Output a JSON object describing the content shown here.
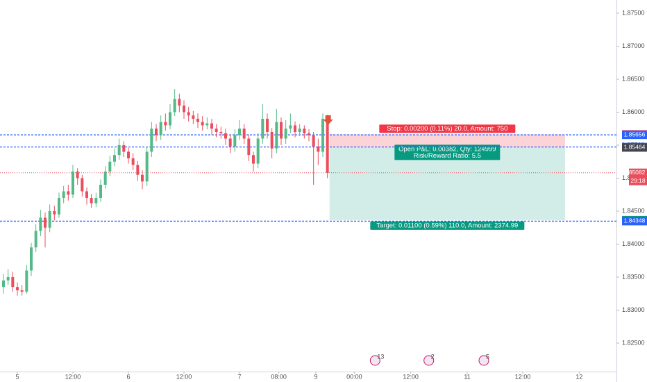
{
  "chart_data": {
    "type": "candlestick",
    "up_color": "#53b987",
    "down_color": "#eb4d5c",
    "x": [
      -3,
      -2,
      -1,
      0,
      1,
      2,
      3,
      4,
      5,
      6,
      7,
      8,
      9,
      10,
      11,
      12,
      13,
      14,
      15,
      16,
      17,
      18,
      19,
      20,
      21,
      22,
      23,
      24,
      25,
      26,
      27,
      28,
      29,
      30,
      31,
      32,
      33,
      34,
      35,
      36,
      37,
      38,
      39,
      40,
      41,
      42,
      43,
      44,
      45,
      46,
      47,
      48,
      49,
      50,
      51,
      52,
      53,
      54,
      55,
      56,
      57,
      58,
      59,
      60,
      61,
      62,
      63,
      64,
      65,
      66,
      67
    ],
    "open": [
      1.8335,
      1.8345,
      1.835,
      1.8335,
      1.833,
      1.8328,
      1.836,
      1.8395,
      1.842,
      1.844,
      1.8425,
      1.845,
      1.8445,
      1.847,
      1.848,
      1.8475,
      1.851,
      1.85,
      1.848,
      1.847,
      1.8462,
      1.847,
      1.849,
      1.851,
      1.8525,
      1.8535,
      1.855,
      1.854,
      1.853,
      1.852,
      1.8505,
      1.8495,
      1.854,
      1.8575,
      1.8565,
      1.8585,
      1.858,
      1.86,
      1.862,
      1.861,
      1.86,
      1.8595,
      1.859,
      1.8585,
      1.858,
      1.8583,
      1.8575,
      1.857,
      1.8568,
      1.856,
      1.8548,
      1.8565,
      1.8575,
      1.856,
      1.8535,
      1.8522,
      1.856,
      1.859,
      1.857,
      1.8545,
      1.8585,
      1.856,
      1.8575,
      1.858,
      1.857,
      1.8575,
      1.8568,
      1.8565,
      1.8548,
      1.854,
      1.859
    ],
    "high": [
      1.8355,
      1.8362,
      1.8358,
      1.8342,
      1.8338,
      1.8368,
      1.8402,
      1.843,
      1.8452,
      1.8448,
      1.846,
      1.8458,
      1.8478,
      1.8488,
      1.849,
      1.852,
      1.8515,
      1.8505,
      1.8486,
      1.8476,
      1.8478,
      1.8498,
      1.8518,
      1.8534,
      1.8545,
      1.856,
      1.8556,
      1.8546,
      1.8538,
      1.8526,
      1.8512,
      1.8548,
      1.8585,
      1.8582,
      1.8595,
      1.8598,
      1.8612,
      1.8635,
      1.8628,
      1.8618,
      1.8608,
      1.8602,
      1.8598,
      1.8594,
      1.8592,
      1.859,
      1.8582,
      1.8578,
      1.8575,
      1.8566,
      1.8574,
      1.8588,
      1.8582,
      1.8566,
      1.854,
      1.8568,
      1.8612,
      1.8598,
      1.8576,
      1.8605,
      1.8592,
      1.8588,
      1.8598,
      1.8586,
      1.8582,
      1.858,
      1.8574,
      1.857,
      1.856,
      1.8598,
      1.8596
    ],
    "low": [
      1.8325,
      1.8338,
      1.8328,
      1.8322,
      1.8322,
      1.8325,
      1.8352,
      1.8388,
      1.8412,
      1.8395,
      1.8418,
      1.8436,
      1.844,
      1.8462,
      1.8466,
      1.847,
      1.849,
      1.8472,
      1.846,
      1.8455,
      1.8456,
      1.8464,
      1.8484,
      1.8503,
      1.8518,
      1.8528,
      1.8532,
      1.8522,
      1.8512,
      1.8496,
      1.8483,
      1.8488,
      1.8532,
      1.8556,
      1.8558,
      1.8572,
      1.8574,
      1.8594,
      1.86,
      1.859,
      1.8586,
      1.8582,
      1.8576,
      1.8572,
      1.8574,
      1.8566,
      1.8562,
      1.856,
      1.855,
      1.8538,
      1.854,
      1.8558,
      1.8552,
      1.8526,
      1.851,
      1.8515,
      1.8552,
      1.856,
      1.853,
      1.8538,
      1.855,
      1.8552,
      1.8568,
      1.8562,
      1.8564,
      1.856,
      1.8556,
      1.849,
      1.852,
      1.8532,
      1.85
    ],
    "close": [
      1.8345,
      1.835,
      1.8335,
      1.833,
      1.8328,
      1.836,
      1.8395,
      1.842,
      1.844,
      1.8425,
      1.845,
      1.8445,
      1.847,
      1.848,
      1.8475,
      1.851,
      1.85,
      1.848,
      1.847,
      1.8462,
      1.847,
      1.849,
      1.851,
      1.8525,
      1.8535,
      1.855,
      1.854,
      1.853,
      1.852,
      1.8505,
      1.8495,
      1.854,
      1.8575,
      1.8565,
      1.8585,
      1.858,
      1.86,
      1.862,
      1.861,
      1.86,
      1.8595,
      1.859,
      1.8585,
      1.858,
      1.8583,
      1.8575,
      1.857,
      1.8568,
      1.856,
      1.8548,
      1.8565,
      1.8575,
      1.856,
      1.8535,
      1.8522,
      1.856,
      1.859,
      1.857,
      1.8545,
      1.8585,
      1.856,
      1.8575,
      1.858,
      1.857,
      1.8575,
      1.8568,
      1.8565,
      1.8548,
      1.854,
      1.859,
      1.8508
    ],
    "xlim": [
      -3.75,
      129.45
    ],
    "ylim": [
      1.82068,
      1.877
    ],
    "grid": false,
    "xticks": [
      {
        "value": 0,
        "label": "5"
      },
      {
        "value": 12,
        "label": "12:00"
      },
      {
        "value": 24,
        "label": "6"
      },
      {
        "value": 36,
        "label": "12:00"
      },
      {
        "value": 48,
        "label": "7"
      },
      {
        "value": 56.5,
        "label": "08:00"
      },
      {
        "value": 64.5,
        "label": "9"
      },
      {
        "value": 72.8,
        "label": "00:00"
      },
      {
        "value": 85,
        "label": "12:00"
      },
      {
        "value": 97.2,
        "label": "11"
      },
      {
        "value": 109.2,
        "label": "12:00"
      },
      {
        "value": 121.4,
        "label": "12"
      }
    ],
    "yticks": [
      {
        "value": 1.825,
        "label": "1.82500"
      },
      {
        "value": 1.83,
        "label": "1.83000"
      },
      {
        "value": 1.835,
        "label": "1.83500"
      },
      {
        "value": 1.84,
        "label": "1.84000"
      },
      {
        "value": 1.845,
        "label": "1.84500"
      },
      {
        "value": 1.85,
        "label": "1.85000"
      },
      {
        "value": 1.855,
        "label": "1.85500"
      },
      {
        "value": 1.86,
        "label": "1.86000"
      },
      {
        "value": 1.865,
        "label": "1.86500"
      },
      {
        "value": 1.87,
        "label": "1.87000"
      },
      {
        "value": 1.875,
        "label": "1.87500"
      }
    ],
    "horizontal_lines": [
      {
        "value": 1.85656,
        "color": "#2962ff"
      },
      {
        "value": 1.85472,
        "color": "#2962ff"
      },
      {
        "value": 1.84348,
        "color": "#2962ff"
      }
    ],
    "current_price": {
      "value": 1.85082,
      "label": "1.85082",
      "color": "#eb4d5c",
      "countdown": "29:18"
    },
    "price_tags": [
      {
        "value": 1.85664,
        "label": "1.85664",
        "color": "#f23645"
      },
      {
        "value": 1.85656,
        "label": "1.85656",
        "color": "#2962ff"
      },
      {
        "value": 1.85472,
        "label": "1.85472",
        "color": "#2962ff"
      },
      {
        "value": 1.85464,
        "label": "1.85464",
        "color": "#434651"
      },
      {
        "value": 1.84364,
        "label": "1.84364",
        "color": "#089981"
      },
      {
        "value": 1.84348,
        "label": "1.84348",
        "color": "#2962ff"
      }
    ],
    "position": {
      "entry": 1.85464,
      "stop": 1.85664,
      "target": 1.84364,
      "stop_label": "Stop: 0.00200 (0.11%) 20.0, Amount: 750",
      "pnl_label": "Open P&L: 0.00382, Qty: 124999",
      "rr_label": "Risk/Reward Ratio: 5.5",
      "target_label": "Target: 0.01100 (0.59%) 110.0, Amount: 2374.99"
    },
    "events": [
      {
        "x": 77.3,
        "label": "13"
      },
      {
        "x": 88.9,
        "label": "2"
      },
      {
        "x": 100.8,
        "label": "5"
      }
    ]
  }
}
